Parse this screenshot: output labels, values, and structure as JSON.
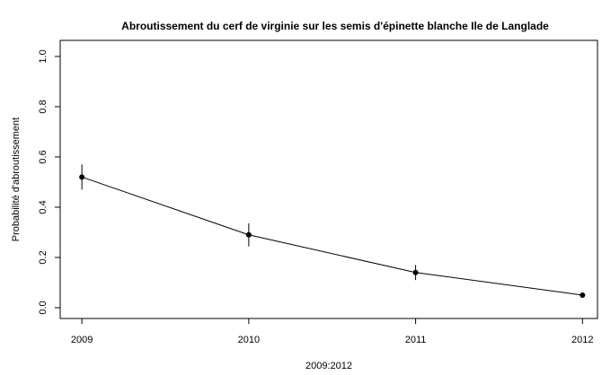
{
  "chart_data": {
    "type": "line",
    "title": "Abroutissement du cerf de virginie sur les semis d'épinette blanche Ile de Langlade",
    "xlabel": "2009:2012",
    "ylabel": "Probabilité d'abroutissement",
    "x": [
      2009,
      2010,
      2011,
      2012
    ],
    "values": [
      0.52,
      0.29,
      0.14,
      0.05
    ],
    "errors": [
      0.05,
      0.046,
      0.03,
      0.01
    ],
    "color": "#000000",
    "xlim": [
      2008.87,
      2012.09
    ],
    "xticks": [
      2009,
      2010,
      2011,
      2012
    ],
    "ylim": [
      -0.043,
      1.064
    ],
    "yticks": [
      {
        "value": 0.0,
        "label": "0.0"
      },
      0.2,
      0.4,
      0.6,
      0.8,
      {
        "value": 1.0,
        "label": "1.0"
      }
    ],
    "grid": false
  }
}
